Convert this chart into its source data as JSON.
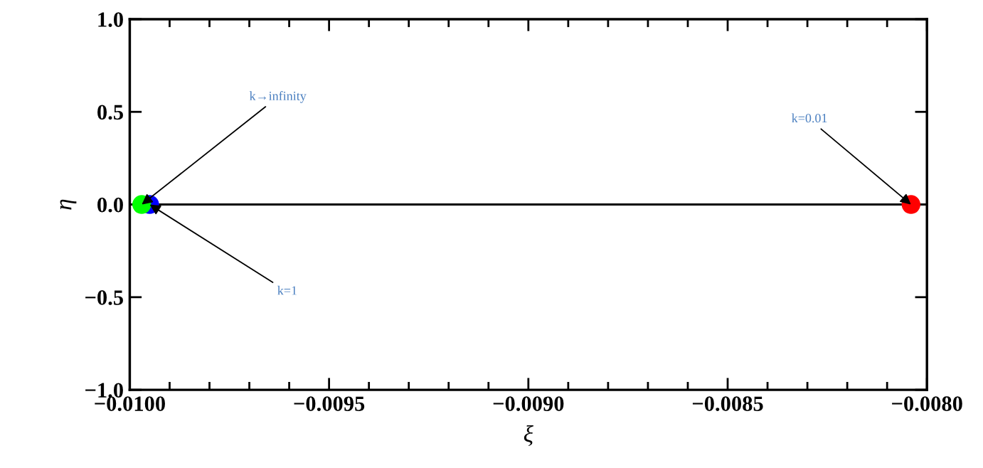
{
  "chart_data": {
    "type": "scatter",
    "xlabel": "ξ",
    "ylabel": "η",
    "xlim": [
      -0.01,
      -0.008
    ],
    "ylim": [
      -1.0,
      1.0
    ],
    "xticks": [
      {
        "value": -0.01,
        "label": "−0.0100"
      },
      {
        "value": -0.0099,
        "label": null
      },
      {
        "value": -0.0098,
        "label": null
      },
      {
        "value": -0.0097,
        "label": null
      },
      {
        "value": -0.0096,
        "label": null
      },
      {
        "value": -0.0095,
        "label": "−0.0095"
      },
      {
        "value": -0.0094,
        "label": null
      },
      {
        "value": -0.0093,
        "label": null
      },
      {
        "value": -0.0092,
        "label": null
      },
      {
        "value": -0.0091,
        "label": null
      },
      {
        "value": -0.009,
        "label": "−0.0090"
      },
      {
        "value": -0.0089,
        "label": null
      },
      {
        "value": -0.0088,
        "label": null
      },
      {
        "value": -0.0087,
        "label": null
      },
      {
        "value": -0.0086,
        "label": null
      },
      {
        "value": -0.0085,
        "label": "−0.0085"
      },
      {
        "value": -0.0084,
        "label": null
      },
      {
        "value": -0.0083,
        "label": null
      },
      {
        "value": -0.0082,
        "label": null
      },
      {
        "value": -0.0081,
        "label": null
      },
      {
        "value": -0.008,
        "label": "−0.0080"
      }
    ],
    "yticks": [
      {
        "value": -1.0,
        "label": "−1.0"
      },
      {
        "value": -0.5,
        "label": "−0.5"
      },
      {
        "value": 0.0,
        "label": "0.0"
      },
      {
        "value": 0.5,
        "label": "0.5"
      },
      {
        "value": 1.0,
        "label": "1.0"
      }
    ],
    "marker": "circle",
    "grid": false,
    "legend": false,
    "series": [
      {
        "color": "#0000ff",
        "x": [
          -0.00995
        ],
        "values": [
          0
        ]
      },
      {
        "color": "#00ff00",
        "x": [
          -0.00997
        ],
        "values": [
          0
        ]
      },
      {
        "color": "#ff0000",
        "x": [
          -0.00804
        ],
        "values": [
          0
        ]
      }
    ],
    "ref_lines": [
      {
        "axis": "y",
        "value": 0,
        "color": "#000000",
        "line_style": "solid"
      }
    ],
    "annotations": [
      {
        "text": "k→infinity",
        "x": -0.00997,
        "y": 0
      },
      {
        "text": "k=1",
        "x": -0.00995,
        "y": 0
      },
      {
        "text": "k=0.01",
        "x": -0.00804,
        "y": 0
      }
    ]
  }
}
